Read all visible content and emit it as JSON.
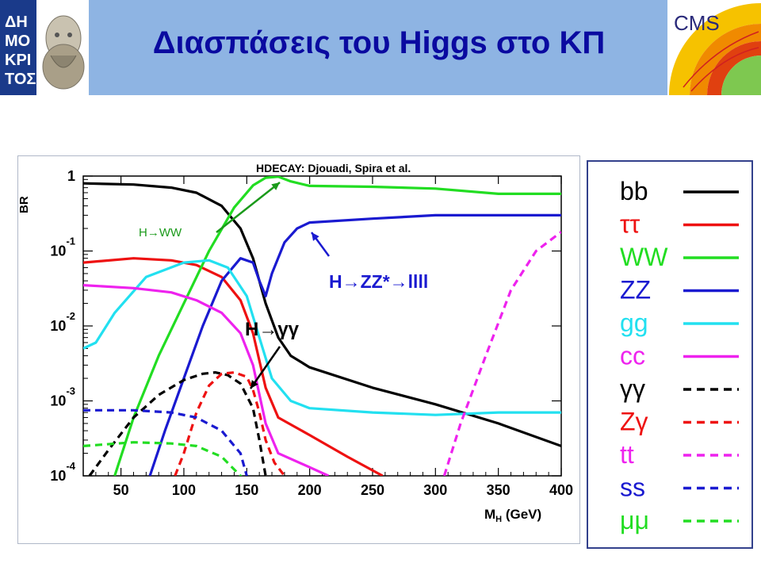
{
  "slide": {
    "title": "Διασπάσεις του Higgs στο ΚΠ",
    "left_logo_text": "ΔΗΜΟΚΡΙΤΟΣ",
    "right_logo_text": "CMS"
  },
  "colors": {
    "header_band": "#8eb4e3",
    "title": "#0a0aa0",
    "bb": "#000000",
    "tautau": "#ee1111",
    "WW": "#22dd22",
    "ZZ": "#1a1ad0",
    "gg": "#22e0f0",
    "cc": "#ee22ee",
    "gammagamma": "#000000",
    "Zgamma": "#ee1111",
    "tt": "#ee22ee",
    "ss": "#1a1ad0",
    "mumu": "#22dd22"
  },
  "chart_data": {
    "type": "line",
    "title": "HDECAY: Djouadi, Spira et al.",
    "xlabel": "MH (GeV)",
    "ylabel": "BR",
    "xlim": [
      20,
      400
    ],
    "ylim": [
      0.0001,
      1
    ],
    "yscale": "log",
    "xticks": [
      50,
      100,
      150,
      200,
      250,
      300,
      350,
      400
    ],
    "yticks": [
      {
        "base": "1",
        "exp": ""
      },
      {
        "base": "10",
        "exp": "-1"
      },
      {
        "base": "10",
        "exp": "-2"
      },
      {
        "base": "10",
        "exp": "-3"
      },
      {
        "base": "10",
        "exp": "-4"
      }
    ],
    "series": [
      {
        "name": "bb",
        "style": "solid",
        "color": "#000000",
        "x": [
          20,
          60,
          90,
          110,
          130,
          145,
          155,
          165,
          175,
          185,
          200,
          250,
          300,
          350,
          400
        ],
        "y": [
          0.8,
          0.77,
          0.7,
          0.6,
          0.4,
          0.2,
          0.08,
          0.02,
          0.007,
          0.004,
          0.0028,
          0.0015,
          0.0009,
          0.0005,
          0.00025
        ]
      },
      {
        "name": "ττ",
        "style": "solid",
        "color": "#ee1111",
        "x": [
          20,
          60,
          90,
          110,
          130,
          145,
          155,
          165,
          175,
          200,
          230,
          258
        ],
        "y": [
          0.07,
          0.08,
          0.075,
          0.065,
          0.045,
          0.022,
          0.008,
          0.0015,
          0.0006,
          0.00035,
          0.00018,
          0.0001
        ]
      },
      {
        "name": "WW",
        "style": "solid",
        "color": "#22dd22",
        "x": [
          45,
          60,
          80,
          100,
          120,
          140,
          155,
          165,
          175,
          185,
          200,
          250,
          300,
          350,
          400
        ],
        "y": [
          0.0001,
          0.0006,
          0.004,
          0.02,
          0.1,
          0.38,
          0.75,
          0.95,
          0.98,
          0.85,
          0.74,
          0.72,
          0.68,
          0.58,
          0.58
        ]
      },
      {
        "name": "ZZ",
        "style": "solid",
        "color": "#1a1ad0",
        "x": [
          73,
          85,
          100,
          115,
          130,
          145,
          155,
          160,
          165,
          170,
          180,
          190,
          200,
          250,
          300,
          350,
          400
        ],
        "y": [
          0.0001,
          0.0004,
          0.002,
          0.01,
          0.04,
          0.08,
          0.07,
          0.04,
          0.025,
          0.05,
          0.13,
          0.2,
          0.24,
          0.27,
          0.3,
          0.3,
          0.3
        ]
      },
      {
        "name": "gg",
        "style": "solid",
        "color": "#22e0f0",
        "x": [
          20,
          30,
          45,
          70,
          100,
          120,
          135,
          150,
          160,
          170,
          185,
          200,
          250,
          300,
          350,
          400
        ],
        "y": [
          0.005,
          0.006,
          0.015,
          0.045,
          0.07,
          0.075,
          0.06,
          0.025,
          0.007,
          0.002,
          0.001,
          0.0008,
          0.0007,
          0.00065,
          0.0007,
          0.0007
        ]
      },
      {
        "name": "cc",
        "style": "solid",
        "color": "#ee22ee",
        "x": [
          20,
          60,
          90,
          110,
          130,
          145,
          155,
          165,
          175,
          200,
          215
        ],
        "y": [
          0.035,
          0.032,
          0.028,
          0.022,
          0.015,
          0.008,
          0.003,
          0.0005,
          0.0002,
          0.00013,
          0.0001
        ]
      },
      {
        "name": "γγ",
        "style": "dashed",
        "color": "#000000",
        "x": [
          25,
          40,
          60,
          80,
          100,
          115,
          125,
          135,
          145,
          155,
          160,
          165
        ],
        "y": [
          0.0001,
          0.00022,
          0.0006,
          0.0012,
          0.0019,
          0.0023,
          0.0024,
          0.0022,
          0.0017,
          0.0008,
          0.0003,
          0.0001
        ]
      },
      {
        "name": "Zγ",
        "style": "dashed",
        "color": "#ee1111",
        "x": [
          93,
          100,
          110,
          120,
          130,
          140,
          150,
          155,
          160,
          165,
          172,
          180
        ],
        "y": [
          0.0001,
          0.0002,
          0.0007,
          0.0016,
          0.0023,
          0.0024,
          0.0021,
          0.0014,
          0.0007,
          0.0003,
          0.00015,
          0.0001
        ]
      },
      {
        "name": "tt",
        "style": "dashed",
        "color": "#ee22ee",
        "x": [
          307,
          320,
          340,
          360,
          380,
          400
        ],
        "y": [
          0.0001,
          0.0005,
          0.004,
          0.03,
          0.1,
          0.18
        ]
      },
      {
        "name": "ss",
        "style": "dashed",
        "color": "#1a1ad0",
        "x": [
          20,
          60,
          90,
          110,
          130,
          145,
          150
        ],
        "y": [
          0.00075,
          0.00075,
          0.0007,
          0.0006,
          0.0004,
          0.0002,
          0.0001
        ]
      },
      {
        "name": "μμ",
        "style": "dashed",
        "color": "#22dd22",
        "x": [
          20,
          60,
          90,
          110,
          130,
          145,
          158
        ],
        "y": [
          0.00025,
          0.00028,
          0.00027,
          0.00025,
          0.00018,
          0.0001,
          6e-05
        ]
      }
    ],
    "annotations": [
      {
        "text": "H→WW",
        "color": "#1a9a1a"
      },
      {
        "text": "H→ZZ*→llll",
        "color": "#1a1ad0"
      },
      {
        "text": "H→γγ",
        "color": "#000000"
      }
    ],
    "legend": {
      "placement": "right",
      "entries": [
        "bb",
        "ττ",
        "WW",
        "ZZ",
        "gg",
        "cc",
        "γγ",
        "Zγ",
        "tt",
        "ss",
        "μμ"
      ]
    }
  }
}
